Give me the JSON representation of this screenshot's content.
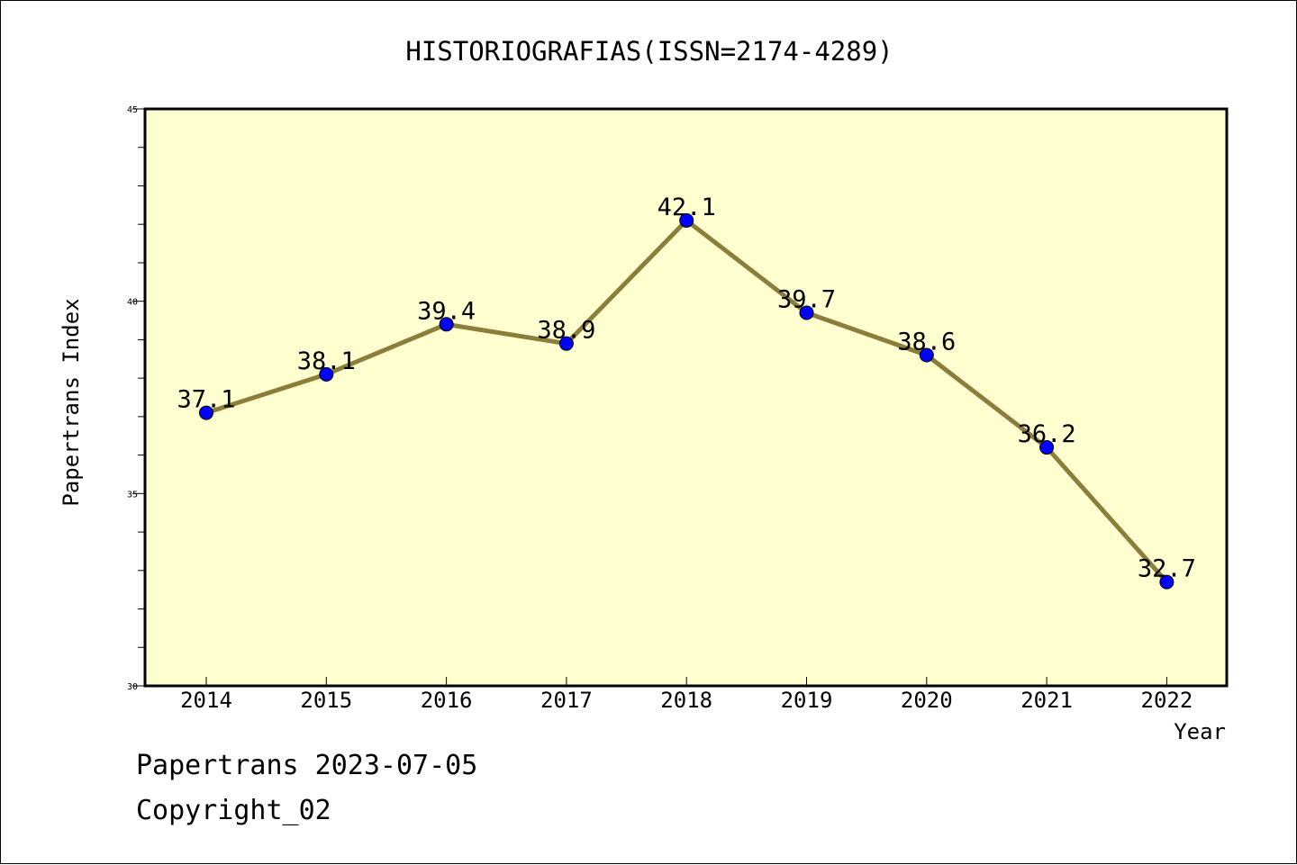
{
  "chart_data": {
    "type": "line",
    "title": "HISTORIOGRAFIAS(ISSN=2174-4289)",
    "xlabel": "Year",
    "ylabel": "Papertrans Index",
    "categories": [
      "2014",
      "2015",
      "2016",
      "2017",
      "2018",
      "2019",
      "2020",
      "2021",
      "2022"
    ],
    "values": [
      37.1,
      38.1,
      39.4,
      38.9,
      42.1,
      39.7,
      38.6,
      36.2,
      32.7
    ],
    "data_labels": [
      "37.1",
      "38.1",
      "39.4",
      "38.9",
      "42.1",
      "39.7",
      "38.6",
      "36.2",
      "32.7"
    ],
    "ylim": [
      30,
      45
    ],
    "y_major_ticks": [
      30,
      35,
      40,
      45
    ],
    "y_minor_step": 1,
    "grid": false,
    "colors": {
      "plot_background": "#ffffd0",
      "line": "#8b7d3a",
      "marker": "#0000ff"
    }
  },
  "footer": {
    "date_line": "Papertrans 2023-07-05",
    "copyright": "Copyright_02"
  }
}
